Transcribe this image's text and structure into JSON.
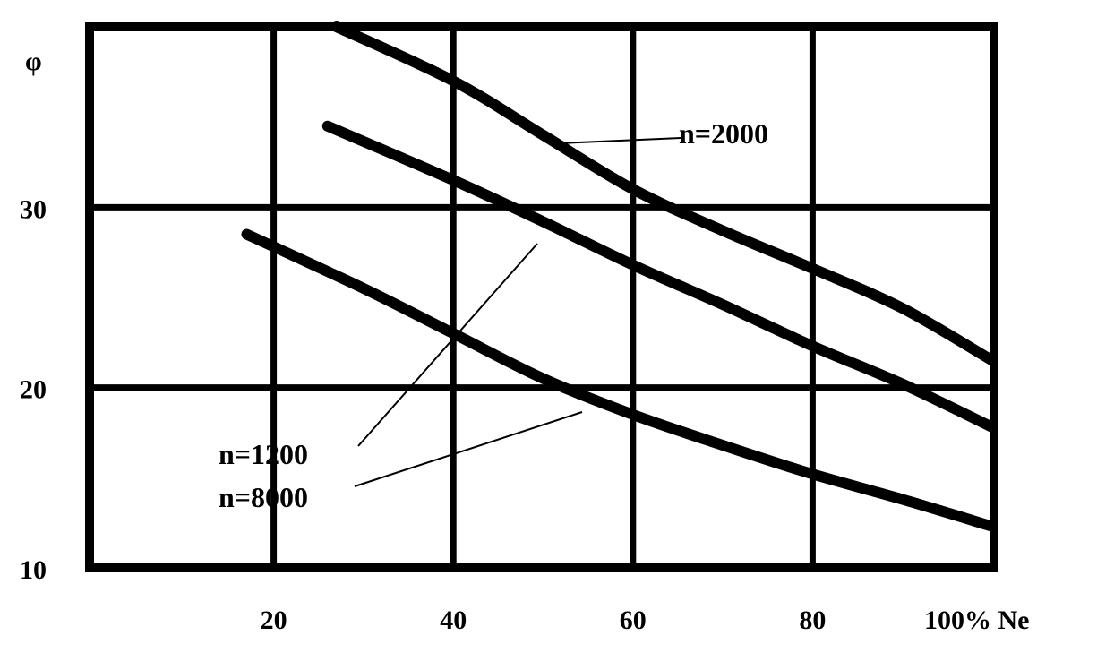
{
  "chart_data": {
    "type": "line",
    "title": "",
    "xlabel": "100% Ne",
    "ylabel": "φ",
    "xlim": [
      0,
      100
    ],
    "ylim": [
      10,
      40
    ],
    "x_ticks": [
      20,
      40,
      60,
      80
    ],
    "x_tick_labels": [
      "20",
      "40",
      "60",
      "80"
    ],
    "y_ticks": [
      10,
      20,
      30
    ],
    "y_tick_labels": [
      "10",
      "20",
      "30"
    ],
    "grid": true,
    "series": [
      {
        "name": "n=2000",
        "x": [
          27,
          40,
          50,
          60,
          70,
          80,
          90,
          100
        ],
        "y": [
          40,
          37,
          34,
          31,
          28.7,
          26.6,
          24.4,
          21.5
        ]
      },
      {
        "name": "n=1200",
        "x": [
          26,
          40,
          50,
          60,
          70,
          80,
          90,
          100
        ],
        "y": [
          34.5,
          31.5,
          29.2,
          26.8,
          24.6,
          22.3,
          20.2,
          17.8
        ]
      },
      {
        "name": "n=8000",
        "x": [
          17,
          30,
          40,
          50,
          60,
          70,
          80,
          90,
          100
        ],
        "y": [
          28.5,
          25.5,
          23,
          20.5,
          18.5,
          16.8,
          15.2,
          13.8,
          12.3
        ]
      }
    ]
  }
}
